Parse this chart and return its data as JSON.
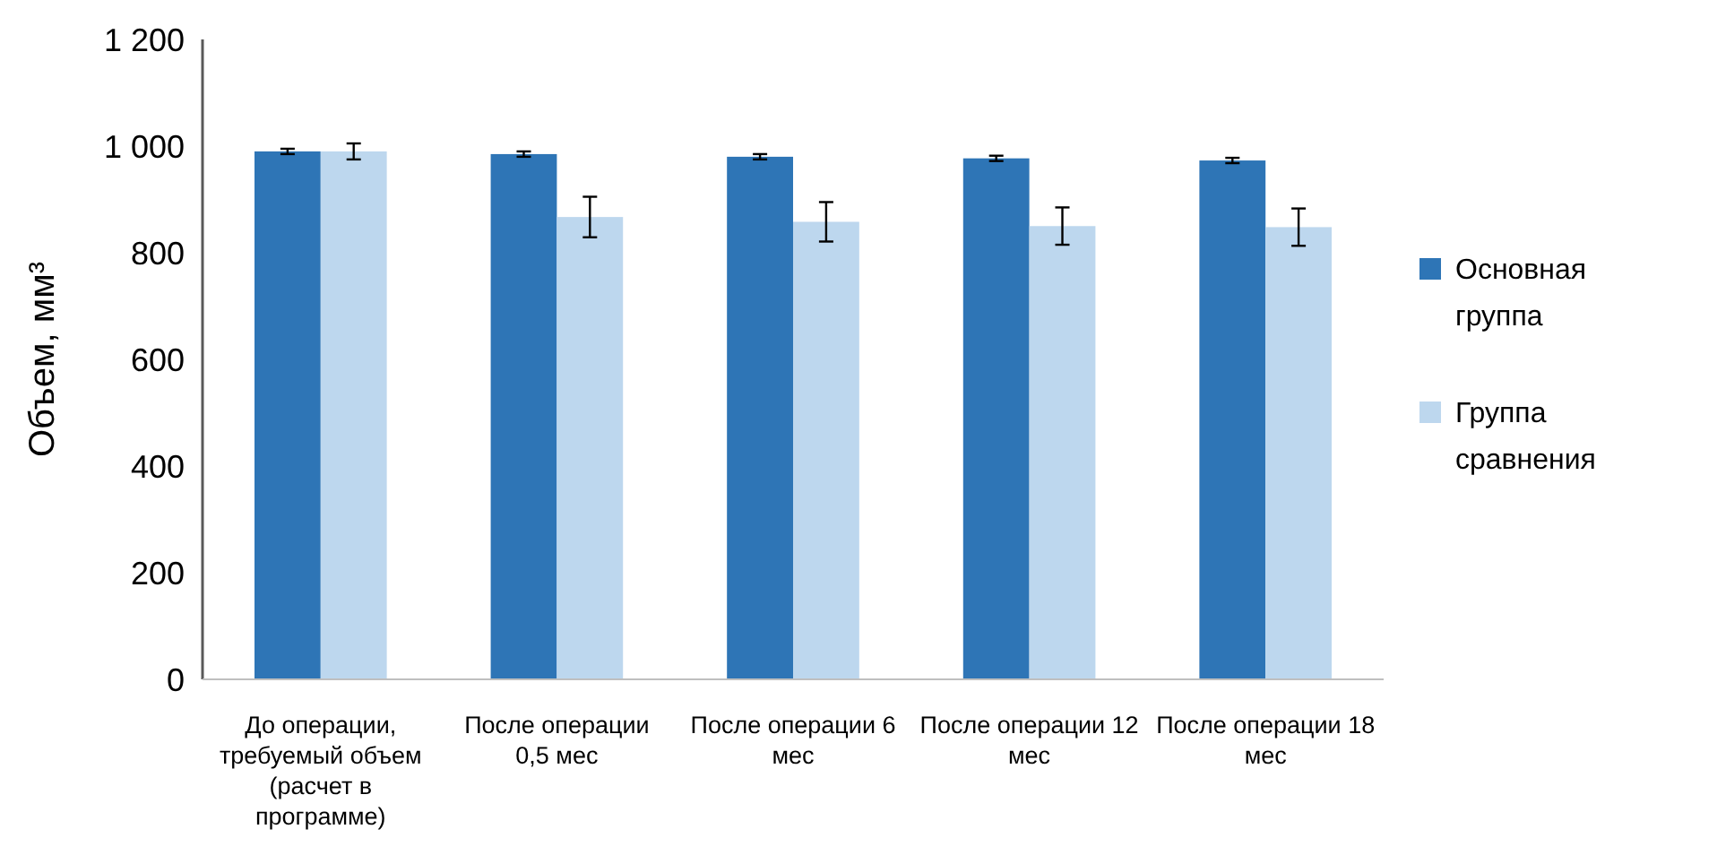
{
  "chart_data": {
    "type": "bar",
    "ylabel": "Объем, мм³",
    "categories": [
      "До операции, требуемый объем (расчет в программе)",
      "После операции 0,5 мес",
      "После операции 6 мес",
      "После операции 12 мес",
      "После операции 18 мес"
    ],
    "series": [
      {
        "name": "Основная группа",
        "color": "#2e75b6",
        "values": [
          990,
          985,
          980,
          977,
          973
        ],
        "errors": [
          5,
          5,
          5,
          5,
          5
        ]
      },
      {
        "name": "Группа сравнения",
        "color": "#bdd7ee",
        "values": [
          990,
          867,
          858,
          850,
          848
        ],
        "errors": [
          15,
          38,
          37,
          35,
          35
        ]
      }
    ],
    "ylim": [
      0,
      1200
    ],
    "yticks": [
      0,
      200,
      400,
      600,
      800,
      {
        "value": 1000,
        "label": "1 000"
      },
      {
        "value": 1200,
        "label": "1 200"
      }
    ],
    "grid": false,
    "legend": "right"
  }
}
